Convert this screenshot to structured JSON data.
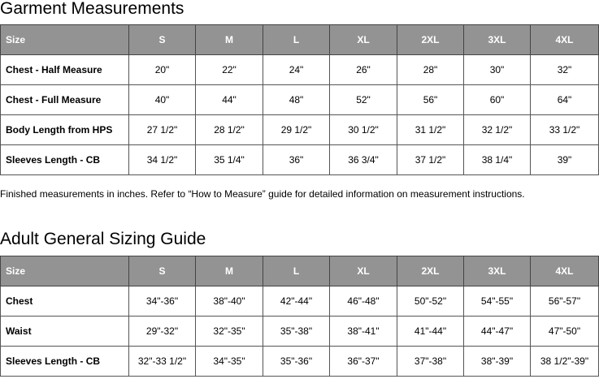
{
  "garment": {
    "title": "Garment Measurements",
    "headers": [
      "Size",
      "S",
      "M",
      "L",
      "XL",
      "2XL",
      "3XL",
      "4XL"
    ],
    "rows": [
      [
        "Chest - Half Measure",
        "20\"",
        "22\"",
        "24\"",
        "26\"",
        "28\"",
        "30\"",
        "32\""
      ],
      [
        "Chest - Full Measure",
        "40\"",
        "44\"",
        "48\"",
        "52\"",
        "56\"",
        "60\"",
        "64\""
      ],
      [
        "Body Length from HPS",
        "27 1/2\"",
        "28 1/2\"",
        "29 1/2\"",
        "30 1/2\"",
        "31 1/2\"",
        "32 1/2\"",
        "33 1/2\""
      ],
      [
        "Sleeves Length - CB",
        "34 1/2\"",
        "35 1/4\"",
        "36\"",
        "36 3/4\"",
        "37 1/2\"",
        "38 1/4\"",
        "39\""
      ]
    ]
  },
  "note": "Finished measurements in inches. Refer to “How to Measure” guide for detailed information on measurement instructions.",
  "sizing": {
    "title": "Adult General Sizing Guide",
    "headers": [
      "Size",
      "S",
      "M",
      "L",
      "XL",
      "2XL",
      "3XL",
      "4XL"
    ],
    "rows": [
      [
        "Chest",
        "34\"-36\"",
        "38\"-40\"",
        "42\"-44\"",
        "46\"-48\"",
        "50\"-52\"",
        "54\"-55\"",
        "56\"-57\""
      ],
      [
        "Waist",
        "29\"-32\"",
        "32\"-35\"",
        "35\"-38\"",
        "38\"-41\"",
        "41\"-44\"",
        "44\"-47\"",
        "47\"-50\""
      ],
      [
        "Sleeves Length - CB",
        "32\"-33 1/2\"",
        "34\"-35\"",
        "35\"-36\"",
        "36\"-37\"",
        "37\"-38\"",
        "38\"-39\"",
        "38 1/2\"-39\""
      ]
    ]
  }
}
